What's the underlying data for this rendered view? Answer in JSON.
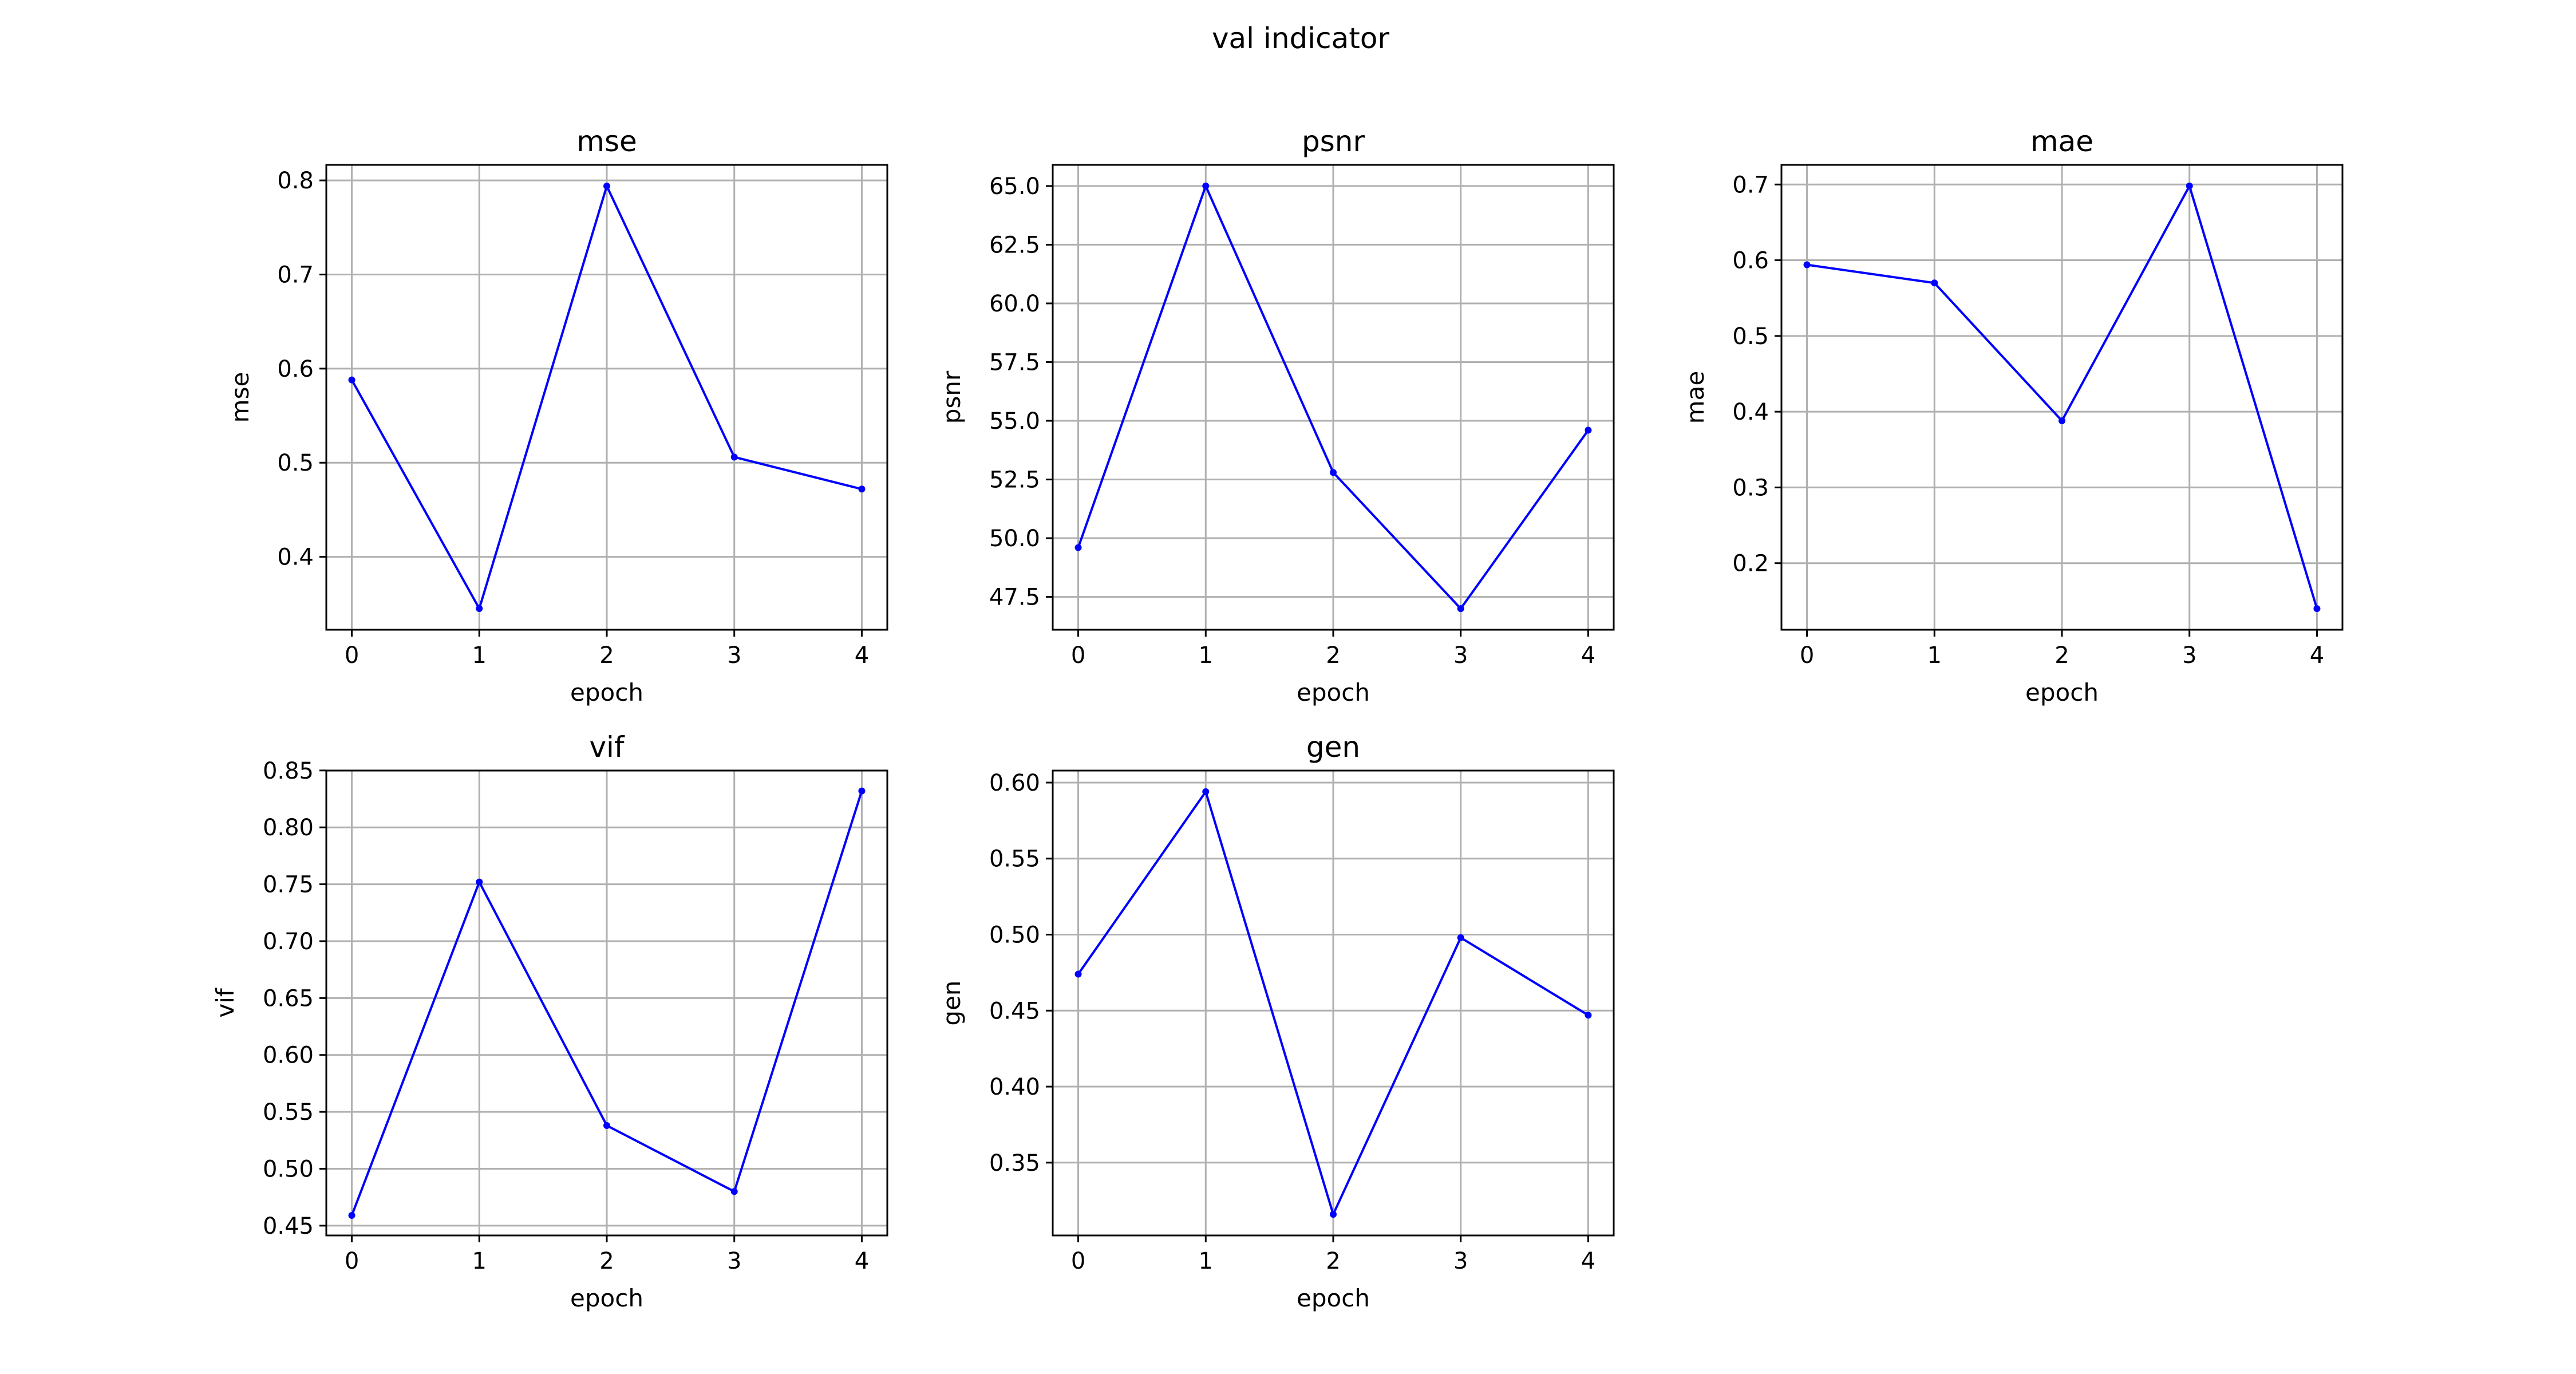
{
  "figure_title": "val indicator",
  "chart_data": [
    {
      "type": "line",
      "title": "mse",
      "xlabel": "epoch",
      "ylabel": "mse",
      "x": [
        0,
        1,
        2,
        3,
        4
      ],
      "y": [
        0.588,
        0.345,
        0.794,
        0.506,
        0.472
      ],
      "xticks": [
        0,
        1,
        2,
        3,
        4
      ],
      "yticks": [
        0.4,
        0.5,
        0.6,
        0.7,
        0.8
      ],
      "ytick_labels": [
        "0.4",
        "0.5",
        "0.6",
        "0.7",
        "0.8"
      ],
      "xlim": [
        -0.2,
        4.2
      ],
      "ylim": [
        0.3225,
        0.8165
      ],
      "grid": true,
      "color": "#0000ff",
      "marker": "dot"
    },
    {
      "type": "line",
      "title": "psnr",
      "xlabel": "epoch",
      "ylabel": "psnr",
      "x": [
        0,
        1,
        2,
        3,
        4
      ],
      "y": [
        49.6,
        65.0,
        52.8,
        47.0,
        54.6
      ],
      "xticks": [
        0,
        1,
        2,
        3,
        4
      ],
      "yticks": [
        47.5,
        50.0,
        52.5,
        55.0,
        57.5,
        60.0,
        62.5,
        65.0
      ],
      "ytick_labels": [
        "47.5",
        "50.0",
        "52.5",
        "55.0",
        "57.5",
        "60.0",
        "62.5",
        "65.0"
      ],
      "xlim": [
        -0.2,
        4.2
      ],
      "ylim": [
        46.1,
        65.9
      ],
      "grid": true,
      "color": "#0000ff",
      "marker": "dot"
    },
    {
      "type": "line",
      "title": "mae",
      "xlabel": "epoch",
      "ylabel": "mae",
      "x": [
        0,
        1,
        2,
        3,
        4
      ],
      "y": [
        0.594,
        0.57,
        0.388,
        0.698,
        0.14
      ],
      "xticks": [
        0,
        1,
        2,
        3,
        4
      ],
      "yticks": [
        0.2,
        0.3,
        0.4,
        0.5,
        0.6,
        0.7
      ],
      "ytick_labels": [
        "0.2",
        "0.3",
        "0.4",
        "0.5",
        "0.6",
        "0.7"
      ],
      "xlim": [
        -0.2,
        4.2
      ],
      "ylim": [
        0.1121,
        0.7259
      ],
      "grid": true,
      "color": "#0000ff",
      "marker": "dot"
    },
    {
      "type": "line",
      "title": "vif",
      "xlabel": "epoch",
      "ylabel": "vif",
      "x": [
        0,
        1,
        2,
        3,
        4
      ],
      "y": [
        0.459,
        0.752,
        0.538,
        0.48,
        0.832
      ],
      "xticks": [
        0,
        1,
        2,
        3,
        4
      ],
      "yticks": [
        0.45,
        0.5,
        0.55,
        0.6,
        0.65,
        0.7,
        0.75,
        0.8,
        0.85
      ],
      "ytick_labels": [
        "0.45",
        "0.50",
        "0.55",
        "0.60",
        "0.65",
        "0.70",
        "0.75",
        "0.80",
        "0.85"
      ],
      "xlim": [
        -0.2,
        4.2
      ],
      "ylim": [
        0.4414,
        0.8499
      ],
      "grid": true,
      "color": "#0000ff",
      "marker": "dot"
    },
    {
      "type": "line",
      "title": "gen",
      "xlabel": "epoch",
      "ylabel": "gen",
      "x": [
        0,
        1,
        2,
        3,
        4
      ],
      "y": [
        0.474,
        0.594,
        0.316,
        0.498,
        0.447
      ],
      "xticks": [
        0,
        1,
        2,
        3,
        4
      ],
      "yticks": [
        0.35,
        0.4,
        0.45,
        0.5,
        0.55,
        0.6
      ],
      "ytick_labels": [
        "0.35",
        "0.40",
        "0.45",
        "0.50",
        "0.55",
        "0.60"
      ],
      "xlim": [
        -0.2,
        4.2
      ],
      "ylim": [
        0.3021,
        0.6079
      ],
      "grid": true,
      "color": "#0000ff",
      "marker": "dot"
    }
  ]
}
